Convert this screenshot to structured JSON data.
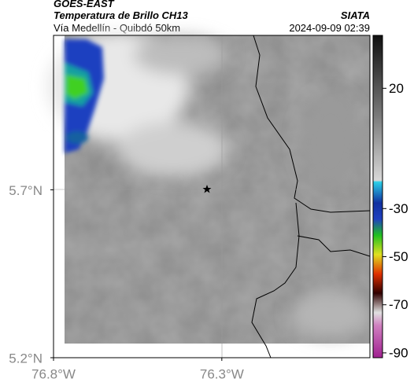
{
  "header": {
    "satellite": "GOES-EAST",
    "product": "Temperatura de Brillo CH13",
    "region": "Vía Medellín - Quibdó 50km",
    "source": "SIATA",
    "datetime": "2024-09-09 02:39"
  },
  "map": {
    "lon_lim": [
      -76.8,
      -75.86
    ],
    "lat_lim": [
      5.2,
      6.16
    ],
    "lon_ticks": [
      {
        "value": -76.8,
        "label": "76.8°W"
      },
      {
        "value": -76.3,
        "label": "76.3°W"
      }
    ],
    "lat_ticks": [
      {
        "value": 5.7,
        "label": "5.7°N"
      },
      {
        "value": 5.2,
        "label": "5.2°N"
      }
    ]
  },
  "colorbar": {
    "lim": [
      -92,
      42
    ],
    "ticks": [
      20,
      -30,
      -50,
      -70,
      -90
    ]
  }
}
